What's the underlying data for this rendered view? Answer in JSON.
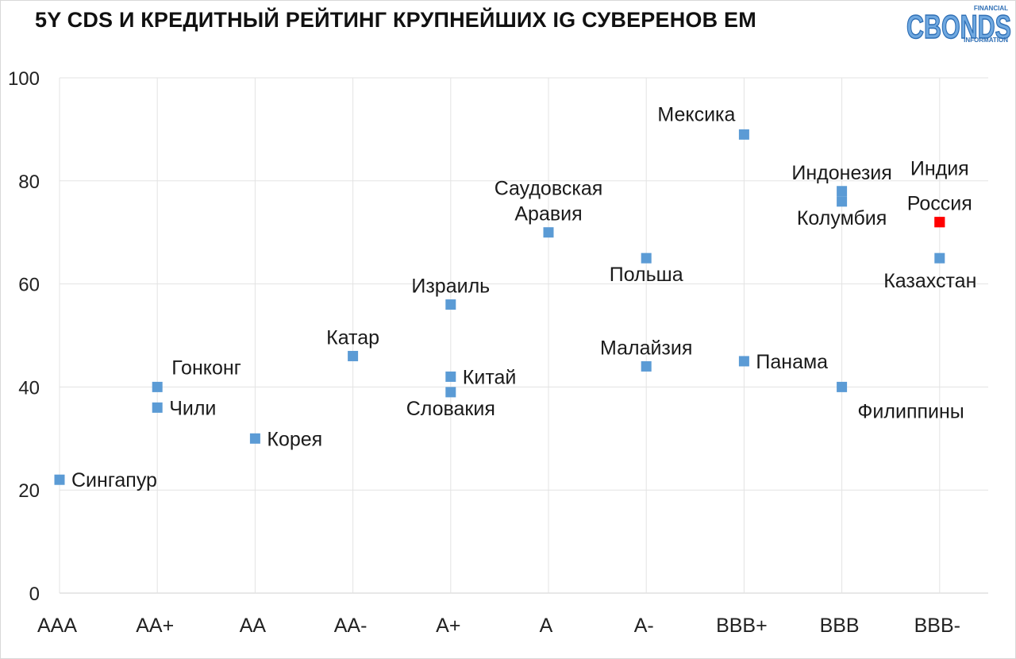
{
  "chart_data": {
    "type": "scatter",
    "title": "5Y CDS И КРЕДИТНЫЙ РЕЙТИНГ КРУПНЕЙШИХ IG СУВЕРЕНОВ EM",
    "xlabel": "",
    "ylabel": "",
    "categories": [
      "AAA",
      "AA+",
      "AA",
      "AA-",
      "A+",
      "A",
      "A-",
      "BBB+",
      "BBB",
      "BBB-"
    ],
    "ylim": [
      0,
      100
    ],
    "yticks": [
      0,
      20,
      40,
      60,
      80,
      100
    ],
    "grid": true,
    "default_color": "#5b9bd5",
    "highlight_color": "#ff0000",
    "points": [
      {
        "label": "Сингапур",
        "x": "AAA",
        "y": 22,
        "anchor": "right"
      },
      {
        "label": "Гонконг",
        "x": "AA+",
        "y": 40,
        "anchor": "above-right"
      },
      {
        "label": "Чили",
        "x": "AA+",
        "y": 36,
        "anchor": "right"
      },
      {
        "label": "Корея",
        "x": "AA",
        "y": 30,
        "anchor": "right"
      },
      {
        "label": "Катар",
        "x": "AA-",
        "y": 46,
        "anchor": "above"
      },
      {
        "label": "Израиль",
        "x": "A+",
        "y": 56,
        "anchor": "above"
      },
      {
        "label": "Китай",
        "x": "A+",
        "y": 42,
        "anchor": "right"
      },
      {
        "label": "Словакия",
        "x": "A+",
        "y": 39,
        "anchor": "below"
      },
      {
        "label": "Саудовская\nАравия",
        "x": "A",
        "y": 70,
        "anchor": "above"
      },
      {
        "label": "Польша",
        "x": "A-",
        "y": 65,
        "anchor": "below"
      },
      {
        "label": "Малайзия",
        "x": "A-",
        "y": 44,
        "anchor": "above"
      },
      {
        "label": "Мексика",
        "x": "BBB+",
        "y": 89,
        "anchor": "above-left"
      },
      {
        "label": "Панама",
        "x": "BBB+",
        "y": 45,
        "anchor": "right"
      },
      {
        "label": "Индонезия",
        "x": "BBB",
        "y": 78,
        "anchor": "above"
      },
      {
        "label": "Колумбия",
        "x": "BBB",
        "y": 76,
        "anchor": "below"
      },
      {
        "label": "Филиппины",
        "x": "BBB",
        "y": 40,
        "anchor": "below-right"
      },
      {
        "label": "Индия",
        "x": "BBB-",
        "y": 72,
        "anchor": "above-far",
        "color": "#ff0000"
      },
      {
        "label": "Россия",
        "x": "BBB-",
        "y": 72,
        "anchor": "above",
        "color": "#ff0000"
      },
      {
        "label": "Казахстан",
        "x": "BBB-",
        "y": 65,
        "anchor": "below-left"
      }
    ]
  },
  "logo": {
    "word": "CBONDS",
    "top_text": "FINANCIAL",
    "bottom_text": "INFORMATION",
    "color": "#4a90d9"
  }
}
